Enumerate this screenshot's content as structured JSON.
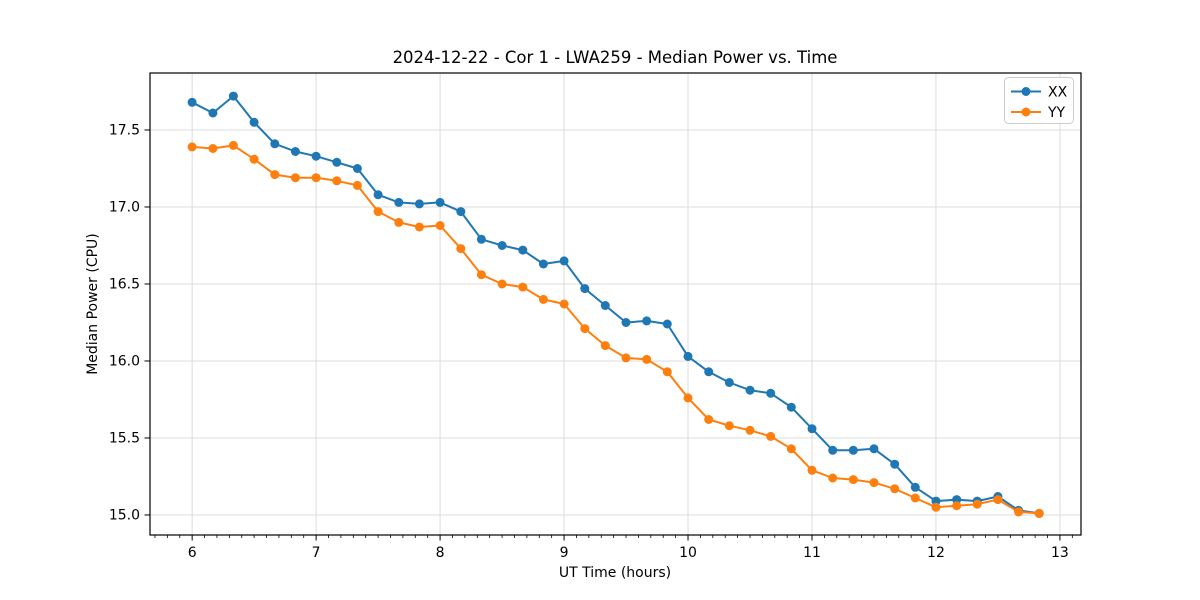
{
  "chart_data": {
    "type": "line",
    "title": "2024-12-22 - Cor 1 - LWA259 - Median Power vs. Time",
    "xlabel": "UT Time (hours)",
    "ylabel": "Median Power (CPU)",
    "xlim": [
      5.66,
      13.17
    ],
    "ylim": [
      14.87,
      17.87
    ],
    "x_major_ticks": [
      6,
      7,
      8,
      9,
      10,
      11,
      12,
      13
    ],
    "x_minor_tick_step": 0.1,
    "y_major_ticks": [
      15.0,
      15.5,
      16.0,
      16.5,
      17.0,
      17.5
    ],
    "grid": "major-both",
    "grid_color": "#dcdcdc",
    "legend_position": "upper right",
    "x": [
      6.0,
      6.167,
      6.333,
      6.5,
      6.667,
      6.833,
      7.0,
      7.167,
      7.333,
      7.5,
      7.667,
      7.833,
      8.0,
      8.167,
      8.333,
      8.5,
      8.667,
      8.833,
      9.0,
      9.167,
      9.333,
      9.5,
      9.667,
      9.833,
      10.0,
      10.167,
      10.333,
      10.5,
      10.667,
      10.833,
      11.0,
      11.167,
      11.333,
      11.5,
      11.667,
      11.833,
      12.0,
      12.167,
      12.333,
      12.5,
      12.667,
      12.833
    ],
    "series": [
      {
        "name": "XX",
        "color": "#1f77b4",
        "marker": "circle",
        "values": [
          17.68,
          17.61,
          17.72,
          17.55,
          17.41,
          17.36,
          17.33,
          17.29,
          17.25,
          17.08,
          17.03,
          17.02,
          17.03,
          16.97,
          16.79,
          16.75,
          16.72,
          16.63,
          16.65,
          16.47,
          16.36,
          16.25,
          16.26,
          16.24,
          16.03,
          15.93,
          15.86,
          15.81,
          15.79,
          15.7,
          15.56,
          15.42,
          15.42,
          15.43,
          15.33,
          15.18,
          15.09,
          15.1,
          15.09,
          15.12,
          15.03,
          15.01
        ]
      },
      {
        "name": "YY",
        "color": "#ff7f0e",
        "marker": "circle",
        "values": [
          17.39,
          17.38,
          17.4,
          17.31,
          17.21,
          17.19,
          17.19,
          17.17,
          17.14,
          16.97,
          16.9,
          16.87,
          16.88,
          16.73,
          16.56,
          16.5,
          16.48,
          16.4,
          16.37,
          16.21,
          16.1,
          16.02,
          16.01,
          15.93,
          15.76,
          15.62,
          15.58,
          15.55,
          15.51,
          15.43,
          15.29,
          15.24,
          15.23,
          15.21,
          15.17,
          15.11,
          15.05,
          15.06,
          15.07,
          15.1,
          15.02,
          15.01
        ]
      }
    ]
  }
}
